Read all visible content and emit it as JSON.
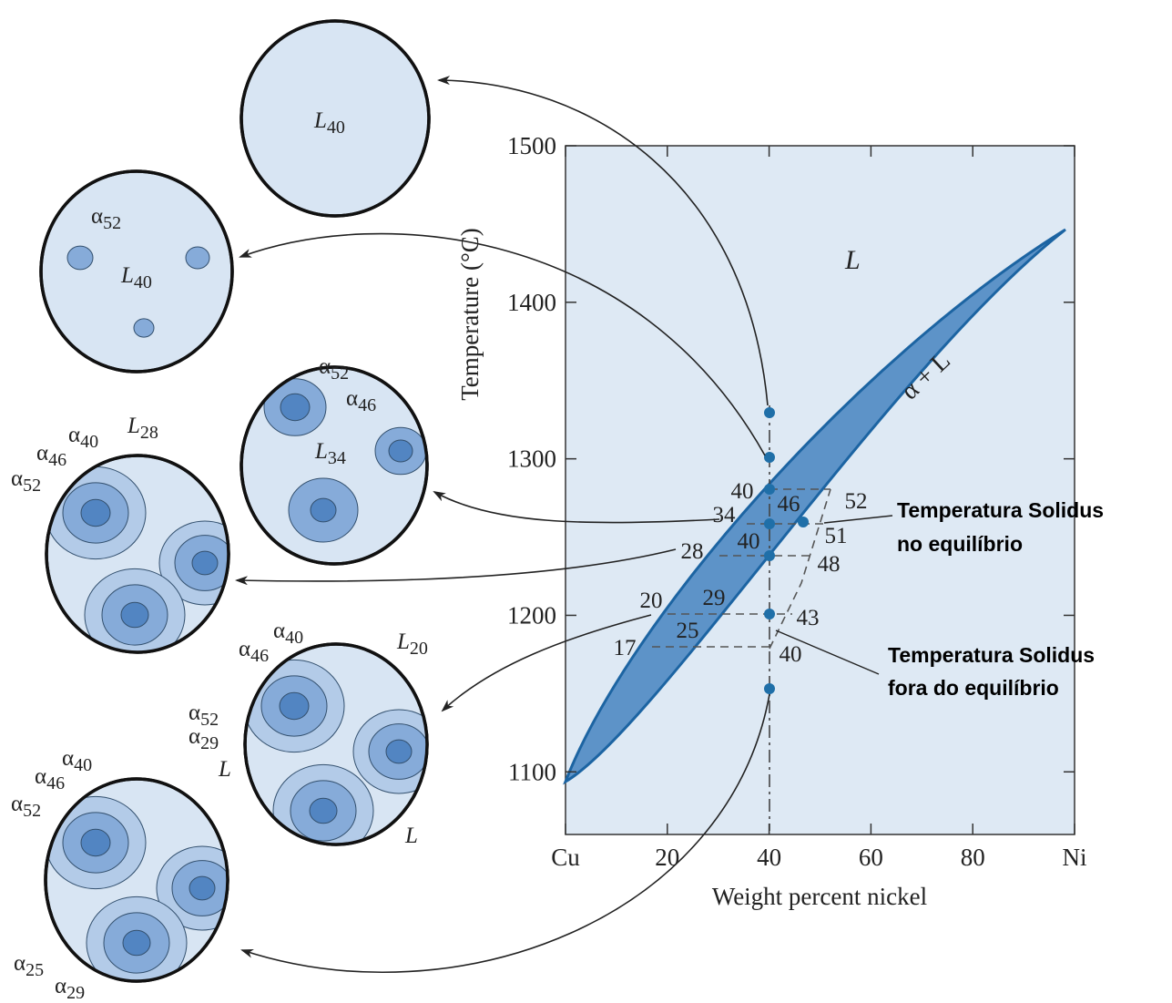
{
  "chart": {
    "y_axis_title": "Temperature (°C)",
    "x_axis_title": "Weight percent nickel",
    "xlim": [
      0,
      100
    ],
    "ylim": [
      1060,
      1500
    ],
    "xticks": [
      {
        "value": 0,
        "label": "Cu"
      },
      20,
      40,
      60,
      80,
      {
        "value": 100,
        "label": "Ni"
      }
    ],
    "yticks": [
      1100,
      1200,
      1300,
      1400,
      1500
    ],
    "regions": {
      "liquid": "L",
      "two_phase": "α + L"
    },
    "composition_labels": [
      "40",
      "46",
      "52",
      "34",
      "40",
      "28",
      "48",
      "51",
      "20",
      "29",
      "43",
      "17",
      "25",
      "40"
    ]
  },
  "notes": [
    {
      "line1": "Temperatura  Solidus",
      "line2": "no equilíbrio"
    },
    {
      "line1": "Temperatura  Solidus",
      "line2": "fora do equilíbrio"
    }
  ],
  "microstructures": [
    {
      "labels": [
        {
          "symbol": "L",
          "sub": "40"
        }
      ]
    },
    {
      "labels": [
        {
          "symbol": "α",
          "sub": "52"
        },
        {
          "symbol": "L",
          "sub": "40"
        }
      ]
    },
    {
      "labels": [
        {
          "symbol": "α",
          "sub": "52"
        },
        {
          "symbol": "α",
          "sub": "46"
        },
        {
          "symbol": "L",
          "sub": "34"
        }
      ]
    },
    {
      "labels": [
        {
          "symbol": "α",
          "sub": "40"
        },
        {
          "symbol": "α",
          "sub": "46"
        },
        {
          "symbol": "α",
          "sub": "52"
        },
        {
          "symbol": "L",
          "sub": "28"
        }
      ]
    },
    {
      "labels": [
        {
          "symbol": "α",
          "sub": "40"
        },
        {
          "symbol": "α",
          "sub": "46"
        },
        {
          "symbol": "α",
          "sub": "52"
        },
        {
          "symbol": "α",
          "sub": "29"
        },
        {
          "symbol": "L"
        },
        {
          "symbol": "L",
          "sub": "20"
        },
        {
          "symbol": "L"
        }
      ]
    },
    {
      "labels": [
        {
          "symbol": "α",
          "sub": "40"
        },
        {
          "symbol": "α",
          "sub": "46"
        },
        {
          "symbol": "α",
          "sub": "52"
        },
        {
          "symbol": "α",
          "sub": "25"
        },
        {
          "symbol": "α",
          "sub": "29"
        }
      ]
    }
  ]
}
